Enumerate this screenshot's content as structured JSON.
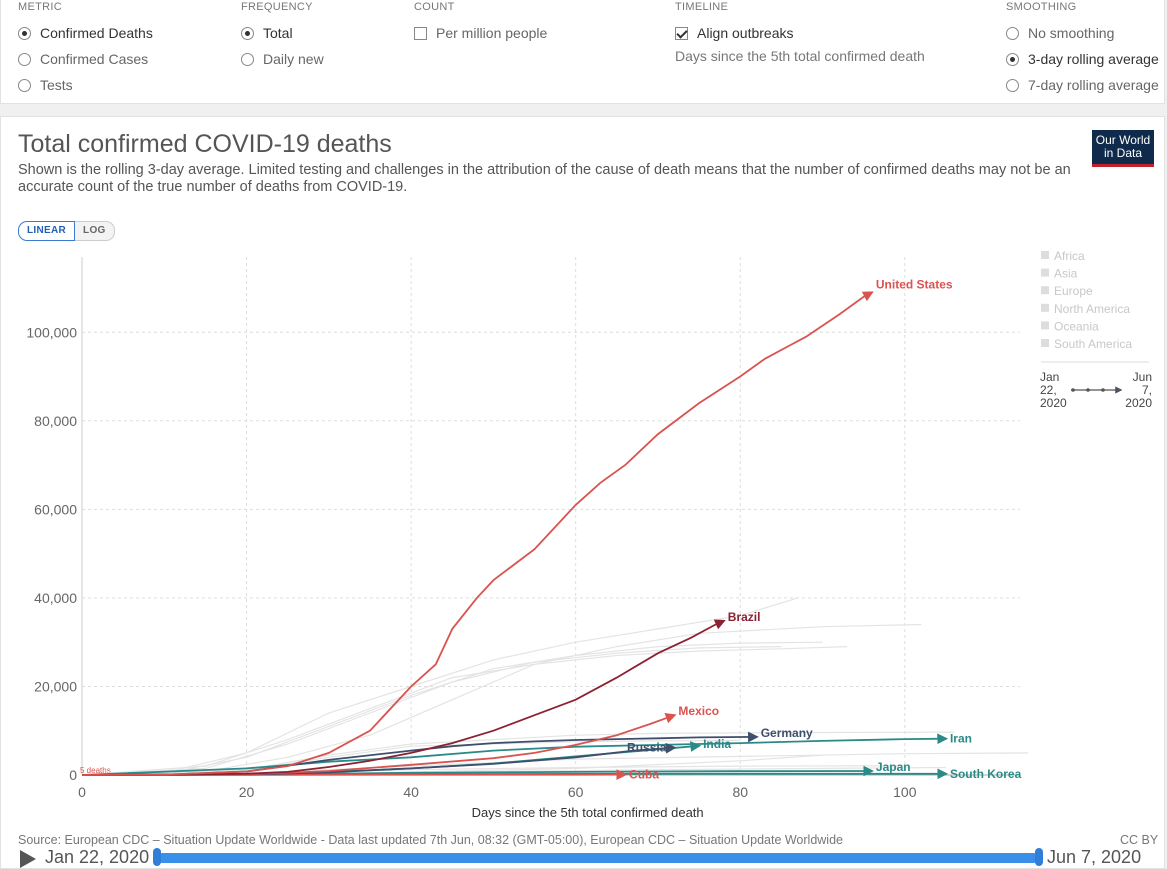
{
  "controls": {
    "metric": {
      "title": "METRIC",
      "options": [
        "Confirmed Deaths",
        "Confirmed Cases",
        "Tests"
      ],
      "selected": 0
    },
    "frequency": {
      "title": "FREQUENCY",
      "options": [
        "Total",
        "Daily new"
      ],
      "selected": 0
    },
    "count": {
      "title": "COUNT",
      "option": "Per million people",
      "checked": false
    },
    "timeline": {
      "title": "TIMELINE",
      "option": "Align outbreaks",
      "checked": true,
      "note": "Days since the 5th total confirmed death"
    },
    "smoothing": {
      "title": "SMOOTHING",
      "options": [
        "No smoothing",
        "3-day rolling average",
        "7-day rolling average"
      ],
      "selected": 1
    }
  },
  "chart_header": {
    "title": "Total confirmed COVID-19 deaths",
    "subtitle_line1": "Shown is the rolling 3-day average. Limited testing and challenges in the attribution of the cause of death means that the number of confirmed deaths may not be an",
    "subtitle_line2": "accurate count of the true number of deaths from COVID-19.",
    "logo_line1": "Our World",
    "logo_line2": "in Data",
    "scale_linear": "LINEAR",
    "scale_log": "LOG"
  },
  "legend": {
    "regions": [
      "Africa",
      "Asia",
      "Europe",
      "North America",
      "Oceania",
      "South America"
    ],
    "range_start": [
      "Jan",
      "22,",
      "2020"
    ],
    "range_end": [
      "Jun",
      "7,",
      "2020"
    ]
  },
  "footer": {
    "source": "Source: European CDC – Situation Update Worldwide - Data last updated 7th Jun, 08:32 (GMT-05:00), European CDC – Situation Update Worldwide",
    "license": "CC BY"
  },
  "timeline_bar": {
    "start": "Jan 22, 2020",
    "end": "Jun 7, 2020"
  },
  "colors": {
    "us": "#d9534f",
    "brazil": "#8b2232",
    "mexico": "#d9534f",
    "germany": "#3e4e6c",
    "russia": "#3e4e6c",
    "teal": "#2a8a87",
    "background_line": "#e4e4e4"
  },
  "chart_data": {
    "type": "line",
    "xlabel": "Days since the 5th total confirmed death",
    "ylabel": "",
    "xlim": [
      0,
      114
    ],
    "ylim": [
      0,
      117000
    ],
    "x_ticks": [
      0,
      20,
      40,
      60,
      80,
      100
    ],
    "y_ticks": [
      0,
      20000,
      40000,
      60000,
      80000,
      100000
    ],
    "y_tick_labels": [
      "0",
      "20,000",
      "40,000",
      "60,000",
      "80,000",
      "100,000"
    ],
    "zero_annotation": "5 deaths",
    "grid": true,
    "series": [
      {
        "name": "United States",
        "key": "us",
        "label_dx": 4,
        "label_dy": -8,
        "points": [
          [
            0,
            5
          ],
          [
            10,
            100
          ],
          [
            20,
            800
          ],
          [
            25,
            2000
          ],
          [
            30,
            5000
          ],
          [
            35,
            10000
          ],
          [
            40,
            20000
          ],
          [
            43,
            25000
          ],
          [
            45,
            33000
          ],
          [
            48,
            40000
          ],
          [
            50,
            44000
          ],
          [
            55,
            51000
          ],
          [
            57,
            55000
          ],
          [
            60,
            61000
          ],
          [
            63,
            66000
          ],
          [
            66,
            70000
          ],
          [
            70,
            77000
          ],
          [
            75,
            84000
          ],
          [
            80,
            90000
          ],
          [
            83,
            94000
          ],
          [
            86,
            97000
          ],
          [
            88,
            99000
          ],
          [
            92,
            104000
          ],
          [
            95,
            108000
          ],
          [
            96,
            109000
          ]
        ]
      },
      {
        "name": "Brazil",
        "key": "brazil",
        "label_dx": 4,
        "label_dy": -4,
        "points": [
          [
            0,
            5
          ],
          [
            10,
            60
          ],
          [
            20,
            300
          ],
          [
            25,
            700
          ],
          [
            30,
            1800
          ],
          [
            35,
            3200
          ],
          [
            40,
            5000
          ],
          [
            45,
            7200
          ],
          [
            50,
            10000
          ],
          [
            55,
            13500
          ],
          [
            60,
            17000
          ],
          [
            65,
            22000
          ],
          [
            70,
            27500
          ],
          [
            74,
            31000
          ],
          [
            77,
            34000
          ],
          [
            78,
            34800
          ]
        ]
      },
      {
        "name": "Mexico",
        "key": "mexico",
        "label_dx": 4,
        "label_dy": -4,
        "points": [
          [
            0,
            5
          ],
          [
            10,
            40
          ],
          [
            20,
            150
          ],
          [
            30,
            900
          ],
          [
            40,
            2300
          ],
          [
            50,
            3800
          ],
          [
            55,
            5000
          ],
          [
            60,
            6800
          ],
          [
            65,
            9000
          ],
          [
            69,
            11500
          ],
          [
            72,
            13500
          ]
        ]
      },
      {
        "name": "Germany",
        "key": "germany",
        "label_dx": 4,
        "label_dy": -4,
        "points": [
          [
            0,
            5
          ],
          [
            10,
            100
          ],
          [
            20,
            800
          ],
          [
            30,
            3400
          ],
          [
            40,
            5500
          ],
          [
            45,
            6500
          ],
          [
            50,
            7200
          ],
          [
            55,
            7600
          ],
          [
            60,
            7900
          ],
          [
            65,
            8100
          ],
          [
            70,
            8300
          ],
          [
            75,
            8500
          ],
          [
            82,
            8600
          ]
        ]
      },
      {
        "name": "Iran",
        "key": "teal",
        "label_dx": 4,
        "label_dy": 0,
        "points": [
          [
            0,
            5
          ],
          [
            20,
            1500
          ],
          [
            30,
            3000
          ],
          [
            40,
            4000
          ],
          [
            50,
            5500
          ],
          [
            60,
            6400
          ],
          [
            70,
            6800
          ],
          [
            80,
            7200
          ],
          [
            90,
            7700
          ],
          [
            100,
            8100
          ],
          [
            105,
            8200
          ]
        ]
      },
      {
        "name": "India",
        "key": "teal",
        "label_dx": 4,
        "label_dy": -2,
        "points": [
          [
            0,
            5
          ],
          [
            20,
            200
          ],
          [
            30,
            700
          ],
          [
            40,
            1500
          ],
          [
            50,
            2600
          ],
          [
            60,
            4200
          ],
          [
            70,
            5800
          ],
          [
            75,
            6600
          ]
        ]
      },
      {
        "name": "Russia",
        "key": "russia",
        "label_dx": -8,
        "label_dy": 0,
        "points": [
          [
            0,
            5
          ],
          [
            20,
            100
          ],
          [
            30,
            600
          ],
          [
            40,
            1500
          ],
          [
            50,
            2500
          ],
          [
            60,
            4000
          ],
          [
            67,
            5500
          ],
          [
            72,
            6200
          ]
        ]
      },
      {
        "name": "Japan",
        "key": "teal",
        "label_dx": 4,
        "label_dy": -4,
        "points": [
          [
            0,
            5
          ],
          [
            20,
            100
          ],
          [
            40,
            500
          ],
          [
            60,
            700
          ],
          [
            80,
            850
          ],
          [
            96,
            900
          ]
        ]
      },
      {
        "name": "South Korea",
        "key": "teal",
        "label_dx": 4,
        "label_dy": 0,
        "points": [
          [
            0,
            5
          ],
          [
            20,
            80
          ],
          [
            40,
            200
          ],
          [
            60,
            250
          ],
          [
            80,
            260
          ],
          [
            105,
            270
          ]
        ]
      },
      {
        "name": "Cuba",
        "key": "us",
        "label_dx": 4,
        "label_dy": 0,
        "points": [
          [
            0,
            5
          ],
          [
            20,
            30
          ],
          [
            40,
            60
          ],
          [
            60,
            75
          ],
          [
            66,
            82
          ]
        ]
      }
    ],
    "background_series": [
      {
        "points": [
          [
            0,
            5
          ],
          [
            10,
            500
          ],
          [
            20,
            5000
          ],
          [
            30,
            14000
          ],
          [
            40,
            20000
          ],
          [
            50,
            26000
          ],
          [
            60,
            30000
          ],
          [
            70,
            33000
          ],
          [
            80,
            36000
          ],
          [
            87,
            40000
          ]
        ]
      },
      {
        "points": [
          [
            0,
            5
          ],
          [
            10,
            300
          ],
          [
            20,
            4000
          ],
          [
            30,
            11000
          ],
          [
            40,
            18000
          ],
          [
            50,
            24000
          ],
          [
            60,
            27000
          ],
          [
            70,
            29000
          ],
          [
            80,
            29800
          ],
          [
            90,
            30000
          ]
        ]
      },
      {
        "points": [
          [
            0,
            5
          ],
          [
            15,
            2000
          ],
          [
            25,
            8000
          ],
          [
            35,
            15000
          ],
          [
            45,
            22000
          ],
          [
            55,
            25000
          ],
          [
            65,
            27000
          ],
          [
            75,
            28000
          ],
          [
            85,
            28500
          ],
          [
            93,
            29000
          ]
        ]
      },
      {
        "points": [
          [
            0,
            5
          ],
          [
            15,
            1500
          ],
          [
            25,
            7000
          ],
          [
            35,
            14000
          ],
          [
            45,
            21000
          ],
          [
            55,
            25500
          ],
          [
            65,
            27500
          ],
          [
            75,
            28700
          ],
          [
            85,
            29000
          ]
        ]
      },
      {
        "points": [
          [
            0,
            5
          ],
          [
            15,
            800
          ],
          [
            25,
            4000
          ],
          [
            35,
            9000
          ],
          [
            45,
            17000
          ],
          [
            55,
            25000
          ],
          [
            65,
            29000
          ],
          [
            75,
            32000
          ],
          [
            90,
            33500
          ],
          [
            102,
            34000
          ]
        ]
      },
      {
        "points": [
          [
            0,
            5
          ],
          [
            20,
            1200
          ],
          [
            30,
            4500
          ],
          [
            40,
            7000
          ],
          [
            50,
            8000
          ],
          [
            60,
            9000
          ],
          [
            70,
            9400
          ],
          [
            80,
            9500
          ],
          [
            90,
            9600
          ],
          [
            106,
            9700
          ]
        ]
      },
      {
        "points": [
          [
            0,
            5
          ],
          [
            20,
            1000
          ],
          [
            30,
            4000
          ],
          [
            40,
            6500
          ],
          [
            50,
            7000
          ],
          [
            60,
            7500
          ],
          [
            70,
            7700
          ],
          [
            80,
            7800
          ]
        ]
      },
      {
        "points": [
          [
            0,
            5
          ],
          [
            20,
            200
          ],
          [
            40,
            1200
          ],
          [
            60,
            1700
          ],
          [
            80,
            2000
          ],
          [
            100,
            2100
          ]
        ]
      },
      {
        "points": [
          [
            0,
            5
          ],
          [
            20,
            100
          ],
          [
            40,
            600
          ],
          [
            60,
            900
          ],
          [
            80,
            1000
          ]
        ]
      },
      {
        "points": [
          [
            0,
            5
          ],
          [
            30,
            300
          ],
          [
            60,
            1500
          ],
          [
            80,
            3200
          ],
          [
            90,
            4500
          ]
        ]
      },
      {
        "points": [
          [
            0,
            5
          ],
          [
            20,
            400
          ],
          [
            40,
            2000
          ],
          [
            60,
            3600
          ],
          [
            80,
            4200
          ],
          [
            100,
            4800
          ],
          [
            115,
            5000
          ]
        ]
      },
      {
        "points": [
          [
            0,
            5
          ],
          [
            30,
            200
          ],
          [
            50,
            800
          ],
          [
            70,
            1200
          ],
          [
            90,
            1500
          ],
          [
            105,
            1700
          ]
        ]
      }
    ]
  }
}
